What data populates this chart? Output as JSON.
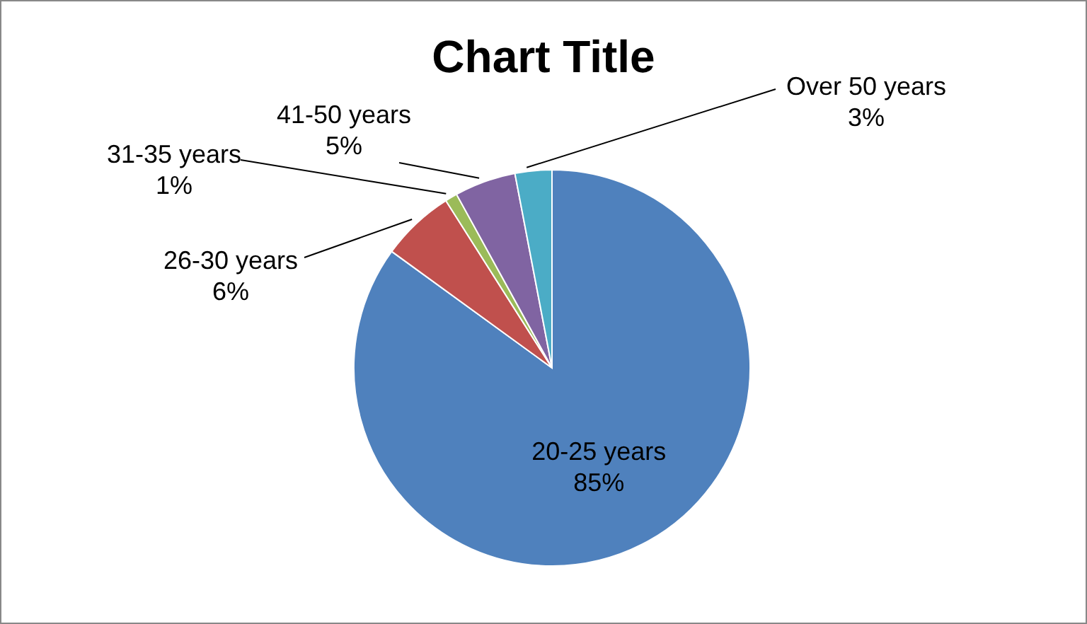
{
  "chart_data": {
    "type": "pie",
    "title": "Chart Title",
    "categories": [
      "20-25 years",
      "26-30 years",
      "31-35 years",
      "41-50 years",
      "Over 50 years"
    ],
    "values": [
      85,
      6,
      1,
      5,
      3
    ],
    "value_labels": [
      "85%",
      "6%",
      "1%",
      "5%",
      "3%"
    ],
    "colors": [
      "#4f81bd",
      "#c0504d",
      "#9bbb59",
      "#8064a2",
      "#4bacc6"
    ],
    "legend": false
  }
}
